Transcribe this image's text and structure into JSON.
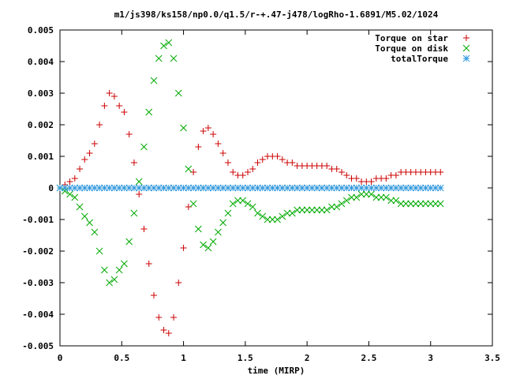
{
  "chart_data": {
    "type": "scatter",
    "title": "m1/js398/ks158/np0.0/q1.5/r-+.47-j478/logRho-1.6891/M5.02/1024",
    "xlabel": "time (MIRP)",
    "ylabel": "",
    "xlim": [
      0,
      3.5
    ],
    "ylim": [
      -0.005,
      0.005
    ],
    "x_ticks": [
      "0",
      "0.5",
      "1",
      "1.5",
      "2",
      "2.5",
      "3",
      "3.5"
    ],
    "x_tick_values": [
      0,
      0.5,
      1,
      1.5,
      2,
      2.5,
      3,
      3.5
    ],
    "y_ticks": [
      "0.005",
      "0.004",
      "0.003",
      "0.002",
      "0.001",
      "0",
      "-0.001",
      "-0.002",
      "-0.003",
      "-0.004",
      "-0.005"
    ],
    "y_tick_values": [
      0.005,
      0.004,
      0.003,
      0.002,
      0.001,
      0,
      -0.001,
      -0.002,
      -0.003,
      -0.004,
      -0.005
    ],
    "grid": false,
    "legend_position": "top-right",
    "series": [
      {
        "name": "Torque on star",
        "marker": "plus",
        "color": "#cc0000",
        "x": [
          0.0,
          0.04,
          0.08,
          0.12,
          0.16,
          0.2,
          0.24,
          0.28,
          0.32,
          0.36,
          0.4,
          0.44,
          0.48,
          0.52,
          0.56,
          0.6,
          0.64,
          0.68,
          0.72,
          0.76,
          0.8,
          0.84,
          0.88,
          0.92,
          0.96,
          1.0,
          1.04,
          1.08,
          1.12,
          1.16,
          1.2,
          1.24,
          1.28,
          1.32,
          1.36,
          1.4,
          1.44,
          1.48,
          1.52,
          1.56,
          1.6,
          1.64,
          1.68,
          1.72,
          1.76,
          1.8,
          1.84,
          1.88,
          1.92,
          1.96,
          2.0,
          2.04,
          2.08,
          2.12,
          2.16,
          2.2,
          2.24,
          2.28,
          2.32,
          2.36,
          2.4,
          2.44,
          2.48,
          2.52,
          2.56,
          2.6,
          2.64,
          2.68,
          2.72,
          2.76,
          2.8,
          2.84,
          2.88,
          2.92,
          2.96,
          3.0,
          3.04,
          3.08
        ],
        "y": [
          0.0,
          0.0001,
          0.0002,
          0.0003,
          0.0006,
          0.0009,
          0.0011,
          0.0014,
          0.002,
          0.0026,
          0.003,
          0.0029,
          0.0026,
          0.0024,
          0.0017,
          0.0008,
          -0.0002,
          -0.0013,
          -0.0024,
          -0.0034,
          -0.0041,
          -0.0045,
          -0.0046,
          -0.0041,
          -0.003,
          -0.0019,
          -0.0006,
          0.0005,
          0.0013,
          0.0018,
          0.0019,
          0.0017,
          0.0014,
          0.0011,
          0.0008,
          0.0005,
          0.0004,
          0.0004,
          0.0005,
          0.0006,
          0.0008,
          0.0009,
          0.001,
          0.001,
          0.001,
          0.0009,
          0.0008,
          0.0008,
          0.0007,
          0.0007,
          0.0007,
          0.0007,
          0.0007,
          0.0007,
          0.0007,
          0.0006,
          0.0006,
          0.0005,
          0.0004,
          0.0003,
          0.0003,
          0.0002,
          0.0002,
          0.0002,
          0.0003,
          0.0003,
          0.0003,
          0.0004,
          0.0004,
          0.0005,
          0.0005,
          0.0005,
          0.0005,
          0.0005,
          0.0005,
          0.0005,
          0.0005,
          0.0005
        ]
      },
      {
        "name": "Torque on disk",
        "marker": "cross",
        "color": "#00aa00",
        "x": [
          0.0,
          0.04,
          0.08,
          0.12,
          0.16,
          0.2,
          0.24,
          0.28,
          0.32,
          0.36,
          0.4,
          0.44,
          0.48,
          0.52,
          0.56,
          0.6,
          0.64,
          0.68,
          0.72,
          0.76,
          0.8,
          0.84,
          0.88,
          0.92,
          0.96,
          1.0,
          1.04,
          1.08,
          1.12,
          1.16,
          1.2,
          1.24,
          1.28,
          1.32,
          1.36,
          1.4,
          1.44,
          1.48,
          1.52,
          1.56,
          1.6,
          1.64,
          1.68,
          1.72,
          1.76,
          1.8,
          1.84,
          1.88,
          1.92,
          1.96,
          2.0,
          2.04,
          2.08,
          2.12,
          2.16,
          2.2,
          2.24,
          2.28,
          2.32,
          2.36,
          2.4,
          2.44,
          2.48,
          2.52,
          2.56,
          2.6,
          2.64,
          2.68,
          2.72,
          2.76,
          2.8,
          2.84,
          2.88,
          2.92,
          2.96,
          3.0,
          3.04,
          3.08
        ],
        "y": [
          0.0,
          -0.0001,
          -0.0002,
          -0.0003,
          -0.0006,
          -0.0009,
          -0.0011,
          -0.0014,
          -0.002,
          -0.0026,
          -0.003,
          -0.0029,
          -0.0026,
          -0.0024,
          -0.0017,
          -0.0008,
          0.0002,
          0.0013,
          0.0024,
          0.0034,
          0.0041,
          0.0045,
          0.0046,
          0.0041,
          0.003,
          0.0019,
          0.0006,
          -0.0005,
          -0.0013,
          -0.0018,
          -0.0019,
          -0.0017,
          -0.0014,
          -0.0011,
          -0.0008,
          -0.0005,
          -0.0004,
          -0.0004,
          -0.0005,
          -0.0006,
          -0.0008,
          -0.0009,
          -0.001,
          -0.001,
          -0.001,
          -0.0009,
          -0.0008,
          -0.0008,
          -0.0007,
          -0.0007,
          -0.0007,
          -0.0007,
          -0.0007,
          -0.0007,
          -0.0007,
          -0.0006,
          -0.0006,
          -0.0005,
          -0.0004,
          -0.0003,
          -0.0003,
          -0.0002,
          -0.0002,
          -0.0002,
          -0.0003,
          -0.0003,
          -0.0003,
          -0.0004,
          -0.0004,
          -0.0005,
          -0.0005,
          -0.0005,
          -0.0005,
          -0.0005,
          -0.0005,
          -0.0005,
          -0.0005,
          -0.0005
        ]
      },
      {
        "name": "totalTorque",
        "marker": "star",
        "color": "#3399dd",
        "x": [
          0.0,
          0.04,
          0.08,
          0.12,
          0.16,
          0.2,
          0.24,
          0.28,
          0.32,
          0.36,
          0.4,
          0.44,
          0.48,
          0.52,
          0.56,
          0.6,
          0.64,
          0.68,
          0.72,
          0.76,
          0.8,
          0.84,
          0.88,
          0.92,
          0.96,
          1.0,
          1.04,
          1.08,
          1.12,
          1.16,
          1.2,
          1.24,
          1.28,
          1.32,
          1.36,
          1.4,
          1.44,
          1.48,
          1.52,
          1.56,
          1.6,
          1.64,
          1.68,
          1.72,
          1.76,
          1.8,
          1.84,
          1.88,
          1.92,
          1.96,
          2.0,
          2.04,
          2.08,
          2.12,
          2.16,
          2.2,
          2.24,
          2.28,
          2.32,
          2.36,
          2.4,
          2.44,
          2.48,
          2.52,
          2.56,
          2.6,
          2.64,
          2.68,
          2.72,
          2.76,
          2.8,
          2.84,
          2.88,
          2.92,
          2.96,
          3.0,
          3.04,
          3.08
        ],
        "y": [
          0,
          0,
          0,
          0,
          0,
          0,
          0,
          0,
          0,
          0,
          0,
          0,
          0,
          0,
          0,
          0,
          0,
          0,
          0,
          0,
          0,
          0,
          0,
          0,
          0,
          0,
          0,
          0,
          0,
          0,
          0,
          0,
          0,
          0,
          0,
          0,
          0,
          0,
          0,
          0,
          0,
          0,
          0,
          0,
          0,
          0,
          0,
          0,
          0,
          0,
          0,
          0,
          0,
          0,
          0,
          0,
          0,
          0,
          0,
          0,
          0,
          0,
          0,
          0,
          0,
          0,
          0,
          0,
          0,
          0,
          0,
          0,
          0,
          0,
          0,
          0,
          0,
          0
        ]
      }
    ]
  }
}
